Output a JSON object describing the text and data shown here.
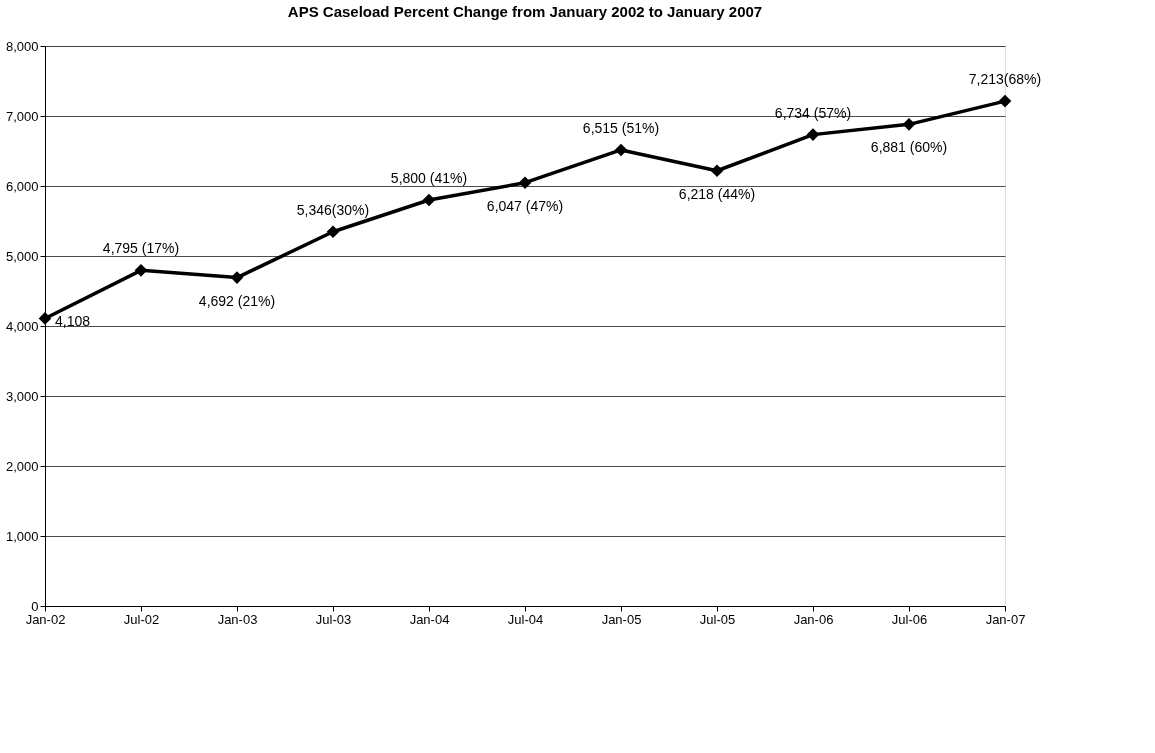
{
  "chart_data": {
    "type": "line",
    "title": "APS Caseload Percent Change from January 2002 to January 2007",
    "categories": [
      "Jan-02",
      "Jul-02",
      "Jan-03",
      "Jul-03",
      "Jan-04",
      "Jul-04",
      "Jan-05",
      "Jul-05",
      "Jan-06",
      "Jul-06",
      "Jan-07"
    ],
    "series": [
      {
        "color": "#000000",
        "values": [
          4108,
          4795,
          4692,
          5346,
          5800,
          6047,
          6515,
          6218,
          6734,
          6881,
          7213
        ],
        "value_labels": [
          "4,108",
          "4,795 (17%)",
          "4,692 (21%)",
          "5,346(30%)",
          "5,800 (41%)",
          "6,047 (47%)",
          "6,515 (51%)",
          "6,218 (44%)",
          "6,734 (57%)",
          "6,881 (60%)",
          "7,213(68%)"
        ]
      }
    ],
    "ylim": [
      0,
      8000
    ],
    "yticks": [
      0,
      {
        "value": 1000,
        "label": "1,000"
      },
      {
        "value": 2000,
        "label": "2,000"
      },
      {
        "value": 3000,
        "label": "3,000"
      },
      {
        "value": 4000,
        "label": "4,000"
      },
      {
        "value": 5000,
        "label": "5,000"
      },
      {
        "value": 6000,
        "label": "6,000"
      },
      {
        "value": 7000,
        "label": "7,000"
      },
      {
        "value": 8000,
        "label": "8,000"
      }
    ],
    "grid": "y",
    "legend": false,
    "marker": "diamond",
    "line_style": "solid"
  }
}
